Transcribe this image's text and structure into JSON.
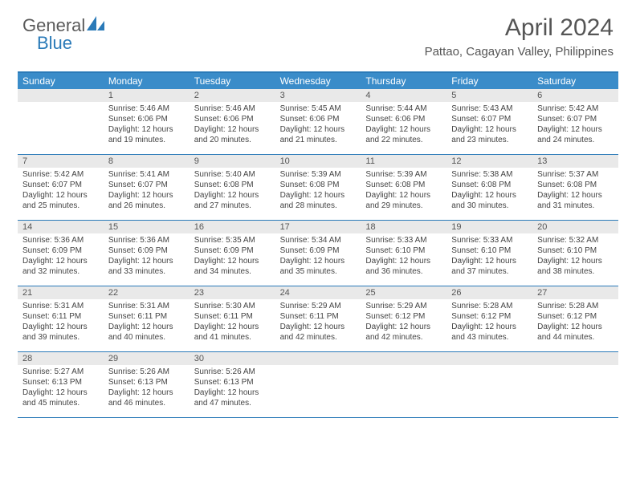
{
  "brand": {
    "part1": "General",
    "part2": "Blue"
  },
  "title": "April 2024",
  "location": "Pattao, Cagayan Valley, Philippines",
  "colors": {
    "headerBg": "#3a8cc9",
    "border": "#2a7ab8",
    "dayNumBg": "#e9e9e9",
    "text": "#444444",
    "titleText": "#555555"
  },
  "dayNames": [
    "Sunday",
    "Monday",
    "Tuesday",
    "Wednesday",
    "Thursday",
    "Friday",
    "Saturday"
  ],
  "weeks": [
    [
      {
        "n": "",
        "lines": []
      },
      {
        "n": "1",
        "lines": [
          "Sunrise: 5:46 AM",
          "Sunset: 6:06 PM",
          "Daylight: 12 hours and 19 minutes."
        ]
      },
      {
        "n": "2",
        "lines": [
          "Sunrise: 5:46 AM",
          "Sunset: 6:06 PM",
          "Daylight: 12 hours and 20 minutes."
        ]
      },
      {
        "n": "3",
        "lines": [
          "Sunrise: 5:45 AM",
          "Sunset: 6:06 PM",
          "Daylight: 12 hours and 21 minutes."
        ]
      },
      {
        "n": "4",
        "lines": [
          "Sunrise: 5:44 AM",
          "Sunset: 6:06 PM",
          "Daylight: 12 hours and 22 minutes."
        ]
      },
      {
        "n": "5",
        "lines": [
          "Sunrise: 5:43 AM",
          "Sunset: 6:07 PM",
          "Daylight: 12 hours and 23 minutes."
        ]
      },
      {
        "n": "6",
        "lines": [
          "Sunrise: 5:42 AM",
          "Sunset: 6:07 PM",
          "Daylight: 12 hours and 24 minutes."
        ]
      }
    ],
    [
      {
        "n": "7",
        "lines": [
          "Sunrise: 5:42 AM",
          "Sunset: 6:07 PM",
          "Daylight: 12 hours and 25 minutes."
        ]
      },
      {
        "n": "8",
        "lines": [
          "Sunrise: 5:41 AM",
          "Sunset: 6:07 PM",
          "Daylight: 12 hours and 26 minutes."
        ]
      },
      {
        "n": "9",
        "lines": [
          "Sunrise: 5:40 AM",
          "Sunset: 6:08 PM",
          "Daylight: 12 hours and 27 minutes."
        ]
      },
      {
        "n": "10",
        "lines": [
          "Sunrise: 5:39 AM",
          "Sunset: 6:08 PM",
          "Daylight: 12 hours and 28 minutes."
        ]
      },
      {
        "n": "11",
        "lines": [
          "Sunrise: 5:39 AM",
          "Sunset: 6:08 PM",
          "Daylight: 12 hours and 29 minutes."
        ]
      },
      {
        "n": "12",
        "lines": [
          "Sunrise: 5:38 AM",
          "Sunset: 6:08 PM",
          "Daylight: 12 hours and 30 minutes."
        ]
      },
      {
        "n": "13",
        "lines": [
          "Sunrise: 5:37 AM",
          "Sunset: 6:08 PM",
          "Daylight: 12 hours and 31 minutes."
        ]
      }
    ],
    [
      {
        "n": "14",
        "lines": [
          "Sunrise: 5:36 AM",
          "Sunset: 6:09 PM",
          "Daylight: 12 hours and 32 minutes."
        ]
      },
      {
        "n": "15",
        "lines": [
          "Sunrise: 5:36 AM",
          "Sunset: 6:09 PM",
          "Daylight: 12 hours and 33 minutes."
        ]
      },
      {
        "n": "16",
        "lines": [
          "Sunrise: 5:35 AM",
          "Sunset: 6:09 PM",
          "Daylight: 12 hours and 34 minutes."
        ]
      },
      {
        "n": "17",
        "lines": [
          "Sunrise: 5:34 AM",
          "Sunset: 6:09 PM",
          "Daylight: 12 hours and 35 minutes."
        ]
      },
      {
        "n": "18",
        "lines": [
          "Sunrise: 5:33 AM",
          "Sunset: 6:10 PM",
          "Daylight: 12 hours and 36 minutes."
        ]
      },
      {
        "n": "19",
        "lines": [
          "Sunrise: 5:33 AM",
          "Sunset: 6:10 PM",
          "Daylight: 12 hours and 37 minutes."
        ]
      },
      {
        "n": "20",
        "lines": [
          "Sunrise: 5:32 AM",
          "Sunset: 6:10 PM",
          "Daylight: 12 hours and 38 minutes."
        ]
      }
    ],
    [
      {
        "n": "21",
        "lines": [
          "Sunrise: 5:31 AM",
          "Sunset: 6:11 PM",
          "Daylight: 12 hours and 39 minutes."
        ]
      },
      {
        "n": "22",
        "lines": [
          "Sunrise: 5:31 AM",
          "Sunset: 6:11 PM",
          "Daylight: 12 hours and 40 minutes."
        ]
      },
      {
        "n": "23",
        "lines": [
          "Sunrise: 5:30 AM",
          "Sunset: 6:11 PM",
          "Daylight: 12 hours and 41 minutes."
        ]
      },
      {
        "n": "24",
        "lines": [
          "Sunrise: 5:29 AM",
          "Sunset: 6:11 PM",
          "Daylight: 12 hours and 42 minutes."
        ]
      },
      {
        "n": "25",
        "lines": [
          "Sunrise: 5:29 AM",
          "Sunset: 6:12 PM",
          "Daylight: 12 hours and 42 minutes."
        ]
      },
      {
        "n": "26",
        "lines": [
          "Sunrise: 5:28 AM",
          "Sunset: 6:12 PM",
          "Daylight: 12 hours and 43 minutes."
        ]
      },
      {
        "n": "27",
        "lines": [
          "Sunrise: 5:28 AM",
          "Sunset: 6:12 PM",
          "Daylight: 12 hours and 44 minutes."
        ]
      }
    ],
    [
      {
        "n": "28",
        "lines": [
          "Sunrise: 5:27 AM",
          "Sunset: 6:13 PM",
          "Daylight: 12 hours and 45 minutes."
        ]
      },
      {
        "n": "29",
        "lines": [
          "Sunrise: 5:26 AM",
          "Sunset: 6:13 PM",
          "Daylight: 12 hours and 46 minutes."
        ]
      },
      {
        "n": "30",
        "lines": [
          "Sunrise: 5:26 AM",
          "Sunset: 6:13 PM",
          "Daylight: 12 hours and 47 minutes."
        ]
      },
      {
        "n": "",
        "lines": []
      },
      {
        "n": "",
        "lines": []
      },
      {
        "n": "",
        "lines": []
      },
      {
        "n": "",
        "lines": []
      }
    ]
  ]
}
